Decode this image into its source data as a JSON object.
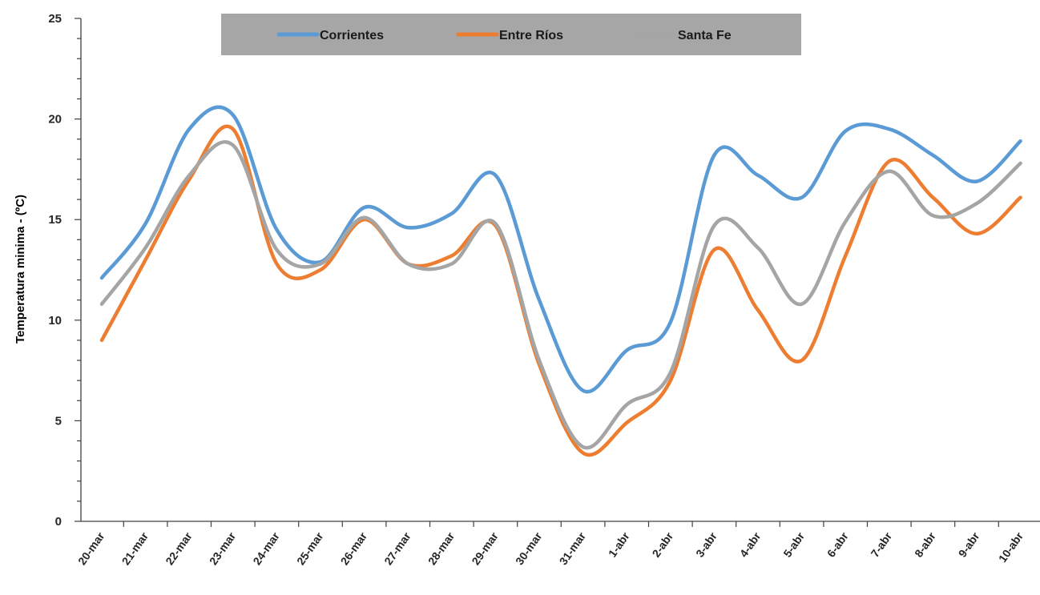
{
  "chart_data": {
    "type": "line",
    "title": "",
    "xlabel": "",
    "ylabel": "Temperatura minima - (ºC)",
    "ylim": [
      0,
      25
    ],
    "yticks": [
      0,
      5,
      10,
      15,
      20,
      25
    ],
    "grid": false,
    "smooth": true,
    "legend": {
      "placement": "top-center",
      "background": "#a6a6a6"
    },
    "categories": [
      "20-mar",
      "21-mar",
      "22-mar",
      "23-mar",
      "24-mar",
      "25-mar",
      "26-mar",
      "27-mar",
      "28-mar",
      "29-mar",
      "30-mar",
      "31-mar",
      "1-abr",
      "2-abr",
      "3-abr",
      "4-abr",
      "5-abr",
      "6-abr",
      "7-abr",
      "8-abr",
      "9-abr",
      "10-abr"
    ],
    "series": [
      {
        "name": "Corrientes",
        "color": "#5b9bd5",
        "values": [
          12.1,
          14.8,
          19.5,
          20.2,
          14.5,
          12.9,
          15.6,
          14.6,
          15.3,
          17.2,
          11.0,
          6.5,
          8.5,
          9.9,
          18.2,
          17.2,
          16.1,
          19.4,
          19.5,
          18.2,
          16.9,
          18.9
        ]
      },
      {
        "name": "Entre Ríos",
        "color": "#ed7d31",
        "values": [
          9.0,
          13.0,
          17.0,
          19.5,
          12.8,
          12.5,
          15.0,
          12.8,
          13.2,
          14.7,
          7.8,
          3.4,
          4.9,
          7.0,
          13.5,
          10.5,
          8.0,
          13.2,
          17.9,
          16.1,
          14.3,
          16.1
        ]
      },
      {
        "name": "Santa Fe",
        "color": "#a5a5a5",
        "values": [
          10.8,
          13.6,
          17.2,
          18.7,
          13.5,
          12.8,
          15.1,
          12.8,
          12.8,
          14.8,
          8.0,
          3.7,
          5.8,
          7.4,
          14.7,
          13.6,
          10.8,
          14.9,
          17.4,
          15.2,
          15.8,
          17.8
        ]
      }
    ]
  }
}
